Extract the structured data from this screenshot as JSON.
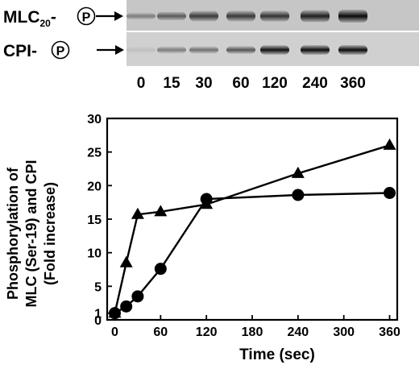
{
  "blots": {
    "rows": [
      {
        "name": "MLC20-P",
        "label_main": "MLC",
        "label_sub": "20",
        "label_dash": "-",
        "phospho_symbol": "P"
      },
      {
        "name": "CPI-P",
        "label_main": "CPI-",
        "label_sub": "",
        "label_dash": "",
        "phospho_symbol": "P"
      }
    ],
    "lane_labels": [
      "0",
      "15",
      "30",
      "60",
      "120",
      "240",
      "360"
    ]
  },
  "chart_data": {
    "type": "line",
    "title": "",
    "xlabel": "Time (sec)",
    "ylabel_lines": [
      "Phosphorylation of",
      "MLC (Ser-19) and CPI",
      "(Fold increase)"
    ],
    "xlim": [
      -10,
      370
    ],
    "ylim": [
      0,
      30
    ],
    "xticks": [
      0,
      60,
      120,
      180,
      240,
      300,
      360
    ],
    "yticks": [
      0,
      1,
      5,
      10,
      15,
      20,
      25,
      30
    ],
    "grid": false,
    "legend": "none",
    "series": [
      {
        "marker": "triangle",
        "color": "#000000",
        "x": [
          0,
          15,
          30,
          60,
          120,
          240,
          360
        ],
        "y": [
          1,
          8.5,
          15.7,
          16.1,
          17.2,
          21.8,
          26.0
        ]
      },
      {
        "marker": "circle",
        "color": "#000000",
        "x": [
          0,
          15,
          30,
          60,
          120,
          240,
          360
        ],
        "y": [
          1,
          2.0,
          3.5,
          7.6,
          18.0,
          18.6,
          18.9
        ]
      }
    ]
  }
}
